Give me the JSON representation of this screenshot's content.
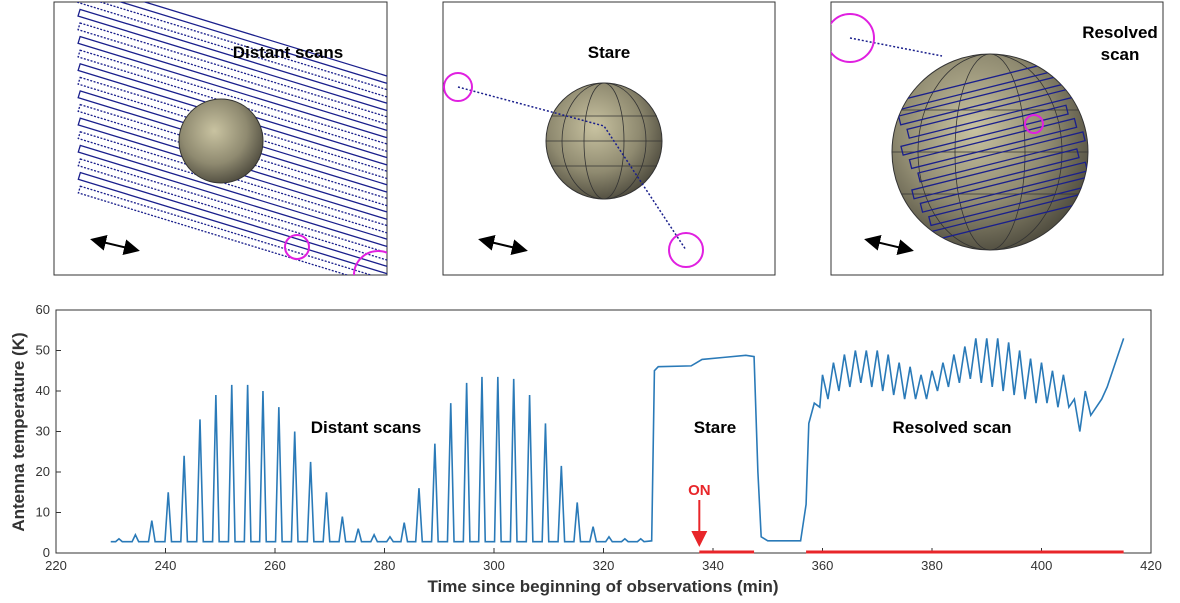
{
  "panels": [
    {
      "title": [
        "Distant scans"
      ]
    },
    {
      "title": [
        "Stare"
      ]
    },
    {
      "title": [
        "Resolved",
        "scan"
      ]
    }
  ],
  "chart_data": {
    "type": "line",
    "x_label": "Time since beginning of observations (min)",
    "y_label": "Antenna temperature (K)",
    "color": "#2a7ab8",
    "xlim": [
      220,
      420
    ],
    "xticks": [
      220,
      240,
      260,
      280,
      300,
      320,
      340,
      360,
      380,
      400,
      420
    ],
    "ylim": [
      0,
      60
    ],
    "yticks": [
      0,
      10,
      20,
      30,
      40,
      50,
      60
    ],
    "annotations": [
      "Distant scans",
      "Stare",
      "Resolved scan"
    ],
    "on_label": "ON",
    "on_x": 337.5,
    "on_color": "#e8262a",
    "on_intervals": [
      [
        337.5,
        347.5
      ],
      [
        357,
        415
      ]
    ],
    "x": [
      230,
      230.9,
      231.5,
      232.1,
      233.9,
      234.5,
      235.1,
      236.9,
      237.5,
      238.1,
      239.9,
      240.5,
      241.1,
      242.8,
      243.4,
      244,
      245.7,
      246.3,
      246.9,
      248.6,
      249.2,
      249.8,
      251.5,
      252.1,
      252.7,
      254.4,
      255,
      255.6,
      257.2,
      257.8,
      258.4,
      260.1,
      260.7,
      261.3,
      263,
      263.6,
      264.2,
      265.9,
      266.5,
      267.1,
      268.8,
      269.4,
      270,
      271.7,
      272.3,
      272.9,
      274.6,
      275.2,
      275.8,
      277.5,
      278.1,
      278.7,
      280.4,
      281,
      281.6,
      283,
      283.6,
      284.2,
      285.7,
      286.3,
      286.9,
      288.6,
      289.2,
      289.8,
      291.5,
      292.1,
      292.7,
      294.4,
      295,
      295.6,
      297.2,
      297.8,
      298.4,
      300.1,
      300.7,
      301.3,
      303,
      303.6,
      304.2,
      305.9,
      306.5,
      307.1,
      308.8,
      309.4,
      310,
      311.7,
      312.3,
      312.9,
      314.6,
      315.2,
      315.8,
      317.5,
      318.1,
      318.7,
      320.4,
      321,
      321.6,
      323.3,
      323.9,
      324.5,
      326.2,
      326.8,
      327.4,
      328.8,
      329.3,
      330,
      336,
      337,
      338,
      342,
      346,
      347.5,
      348.2,
      348.8,
      350,
      356,
      357,
      357.5,
      358.5,
      359.5,
      360,
      361,
      362,
      363,
      364,
      365,
      366,
      367,
      368,
      369,
      370,
      371,
      372,
      373,
      374,
      375,
      376,
      377,
      378,
      379,
      380,
      381,
      382,
      383,
      384,
      385,
      386,
      387,
      388,
      389,
      390,
      391,
      392,
      393,
      394,
      395,
      396,
      397,
      398,
      399,
      400,
      401,
      402,
      403,
      404,
      405,
      406,
      407,
      408,
      409,
      410,
      411,
      412,
      413,
      414,
      415
    ],
    "values": [
      2.8,
      2.8,
      3.5,
      2.8,
      2.8,
      4.5,
      2.8,
      2.8,
      8,
      2.8,
      2.8,
      15,
      2.8,
      2.8,
      24,
      2.8,
      2.8,
      33,
      2.8,
      2.8,
      39,
      2.8,
      2.8,
      41.5,
      2.8,
      2.8,
      41.5,
      2.8,
      2.8,
      40,
      2.8,
      2.8,
      36,
      2.8,
      2.8,
      30,
      2.8,
      2.8,
      22.5,
      2.8,
      2.8,
      15,
      2.8,
      2.8,
      9,
      2.8,
      2.8,
      6,
      2.8,
      2.8,
      4.5,
      2.8,
      2.8,
      4,
      2.8,
      2.8,
      7.5,
      2.8,
      2.8,
      16,
      2.8,
      2.8,
      27,
      2.8,
      2.8,
      37,
      2.8,
      2.8,
      42,
      2.8,
      2.8,
      43.5,
      2.8,
      2.8,
      43.5,
      2.8,
      2.8,
      43,
      2.8,
      2.8,
      39,
      2.8,
      2.8,
      32,
      2.8,
      2.8,
      21.5,
      2.8,
      2.8,
      12.5,
      2.8,
      2.8,
      6.5,
      2.8,
      2.8,
      4,
      2.8,
      2.8,
      3.5,
      2.8,
      2.8,
      3.5,
      2.8,
      3,
      45,
      46,
      46.2,
      47,
      47.8,
      48.3,
      48.8,
      48.5,
      20,
      4,
      3,
      3,
      12,
      32,
      37,
      36,
      44,
      38,
      47,
      40,
      49,
      41,
      50,
      42,
      50,
      41,
      50,
      40,
      49,
      39,
      47,
      38,
      46,
      38,
      44,
      38,
      45,
      40,
      47,
      41,
      49,
      42,
      51,
      43,
      53,
      42,
      53,
      41,
      53,
      40,
      52,
      39,
      50,
      38,
      48,
      37,
      47,
      37,
      45,
      36,
      44,
      36,
      38,
      30,
      40,
      34,
      36,
      38,
      41,
      45,
      49,
      53
    ]
  }
}
